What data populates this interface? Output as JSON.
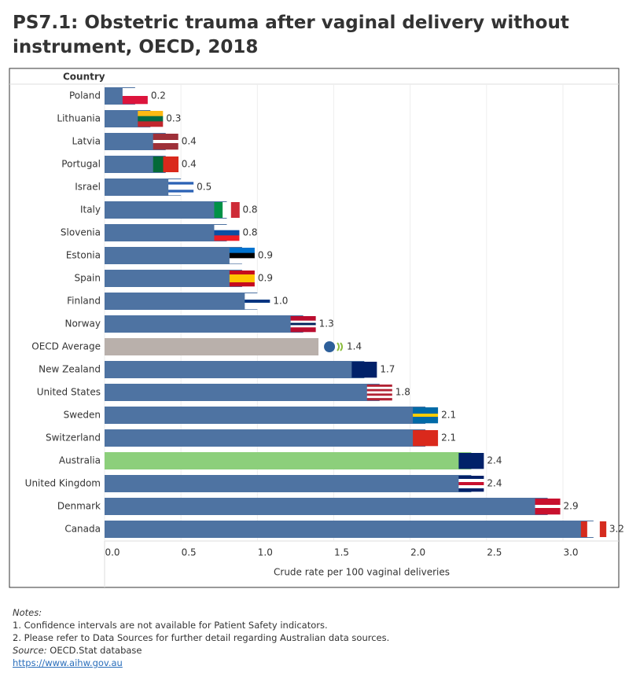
{
  "chart_data": {
    "type": "barh",
    "title": "PS7.1: Obstetric trauma after vaginal delivery without instrument, OECD, 2018",
    "category_header": "Country",
    "x_label": "Crude rate per 100 vaginal deliveries",
    "categories": [
      "Poland",
      "Lithuania",
      "Latvia",
      "Portugal",
      "Israel",
      "Italy",
      "Slovenia",
      "Estonia",
      "Spain",
      "Finland",
      "Norway",
      "OECD Average",
      "New Zealand",
      "United States",
      "Sweden",
      "Switzerland",
      "Australia",
      "United Kingdom",
      "Denmark",
      "Canada"
    ],
    "values": [
      0.2,
      0.3,
      0.4,
      0.4,
      0.5,
      0.8,
      0.8,
      0.9,
      0.9,
      1.0,
      1.3,
      1.4,
      1.7,
      1.8,
      2.1,
      2.1,
      2.4,
      2.4,
      2.9,
      3.2
    ],
    "value_labels": [
      "0.2",
      "0.3",
      "0.4",
      "0.4",
      "0.5",
      "0.8",
      "0.8",
      "0.9",
      "0.9",
      "1.0",
      "1.3",
      "1.4",
      "1.7",
      "1.8",
      "2.1",
      "2.1",
      "2.4",
      "2.4",
      "2.9",
      "3.2"
    ],
    "colors": [
      "#4e73a2",
      "#4e73a2",
      "#4e73a2",
      "#4e73a2",
      "#4e73a2",
      "#4e73a2",
      "#4e73a2",
      "#4e73a2",
      "#4e73a2",
      "#4e73a2",
      "#4e73a2",
      "#b9b0ab",
      "#4e73a2",
      "#4e73a2",
      "#4e73a2",
      "#4e73a2",
      "#8ccf7b",
      "#4e73a2",
      "#4e73a2",
      "#4e73a2"
    ],
    "xlim": [
      0,
      3.35
    ],
    "xticks": [
      {
        "value": 0,
        "label": "0.0"
      },
      0.5,
      {
        "value": 1,
        "label": "1.0"
      },
      1.5,
      {
        "value": 2,
        "label": "2.0"
      },
      2.5,
      {
        "value": 3,
        "label": "3.0"
      }
    ],
    "grid": true
  },
  "notes": {
    "heading": "Notes:",
    "lines": [
      "1. Confidence intervals are not available for Patient Safety indicators.",
      "2. Please refer to Data Sources for further detail regarding Australian data sources."
    ],
    "source_label": "Source:",
    "source": "OECD.Stat database",
    "link": "https://www.aihw.gov.au"
  }
}
